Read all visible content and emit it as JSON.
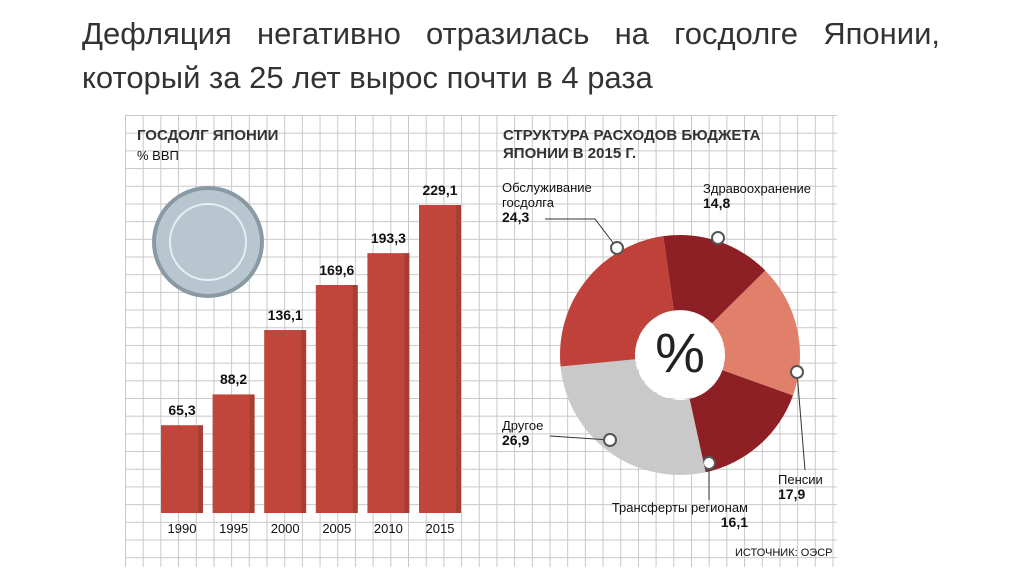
{
  "slide_title": "Дефляция негативно отразилась на госдолге Японии, который за 25 лет вырос почти в 4 раза",
  "source": "ИСТОЧНИК: ОЭСР",
  "chart_data": [
    {
      "type": "bar",
      "title": "ГОСДОЛГ ЯПОНИИ",
      "subtitle": "% ВВП",
      "categories": [
        "1990",
        "1995",
        "2000",
        "2005",
        "2010",
        "2015"
      ],
      "values": [
        65.3,
        88.2,
        136.1,
        169.6,
        193.3,
        229.1
      ],
      "value_labels": [
        "65,3",
        "88,2",
        "136,1",
        "169,6",
        "193,3",
        "229,1"
      ],
      "color": "#c0463c"
    },
    {
      "type": "pie",
      "title": "СТРУКТУРА РАСХОДОВ БЮДЖЕТА ЯПОНИИ В 2015 Г.",
      "center_label": "%",
      "categories": [
        "Здравоохранение",
        "Пенсии",
        "Трансферты регионам",
        "Другое",
        "Обслуживание госдолга"
      ],
      "values": [
        14.8,
        17.9,
        16.1,
        26.9,
        24.3
      ],
      "value_labels": [
        "14,8",
        "17,9",
        "16,1",
        "26,9",
        "24,3"
      ],
      "colors": [
        "#8e1f24",
        "#e0806a",
        "#8e1f24",
        "#c9c9c9",
        "#c0413a"
      ]
    }
  ]
}
